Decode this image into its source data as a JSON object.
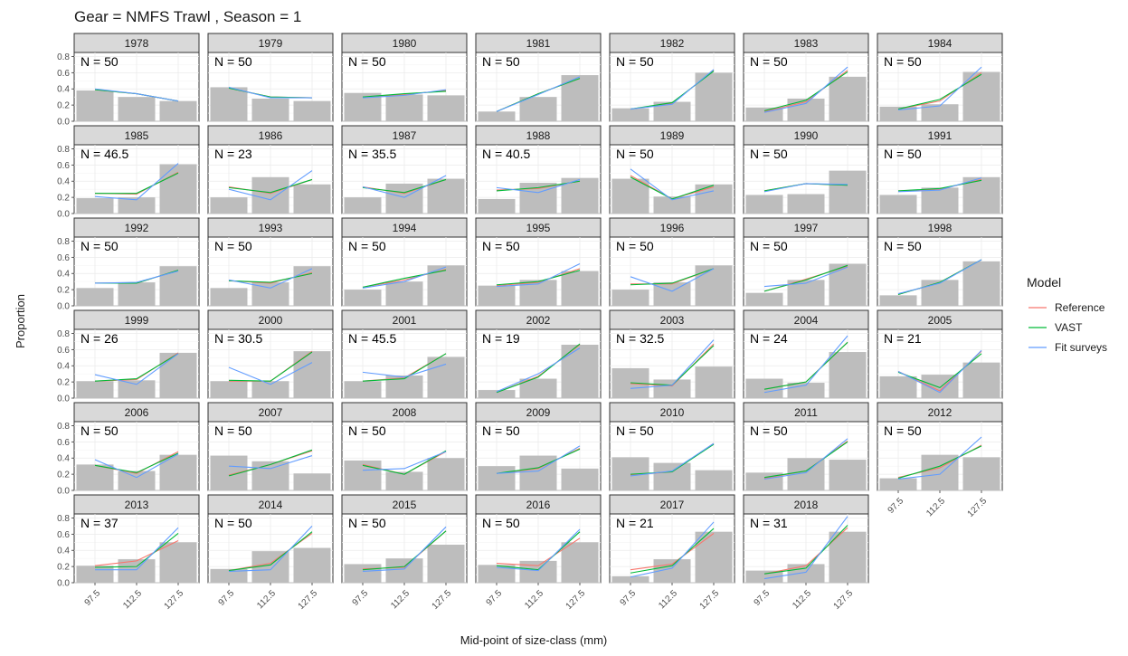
{
  "chart_data": {
    "type": "bar",
    "title": "Gear = NMFS Trawl , Season = 1",
    "xlabel": "Mid-point of size-class (mm)",
    "ylabel": "Proportion",
    "categories": [
      "97.5",
      "112.5",
      "127.5"
    ],
    "ylim": [
      0,
      0.85
    ],
    "yticks": [
      "0.0",
      "0.2",
      "0.4",
      "0.6",
      "0.8"
    ],
    "grid": true,
    "legend": {
      "title": "Model",
      "position": "right",
      "entries": [
        {
          "name": "Reference",
          "color": "#F8766D"
        },
        {
          "name": "VAST",
          "color": "#00BA38"
        },
        {
          "name": "Fit surveys",
          "color": "#619CFF"
        }
      ]
    },
    "bar_color": "#BDBDBD",
    "panels": [
      {
        "year": "1978",
        "n": "N = 50",
        "obs": [
          0.38,
          0.3,
          0.25
        ],
        "ref": [
          0.39,
          0.34,
          0.25
        ],
        "vast": [
          0.39,
          0.34,
          0.25
        ],
        "fit": [
          0.4,
          0.34,
          0.25
        ]
      },
      {
        "year": "1979",
        "n": "N = 50",
        "obs": [
          0.42,
          0.28,
          0.25
        ],
        "ref": [
          0.41,
          0.3,
          0.29
        ],
        "vast": [
          0.41,
          0.3,
          0.29
        ],
        "fit": [
          0.42,
          0.29,
          0.29
        ]
      },
      {
        "year": "1980",
        "n": "N = 50",
        "obs": [
          0.35,
          0.33,
          0.32
        ],
        "ref": [
          0.3,
          0.33,
          0.38
        ],
        "vast": [
          0.3,
          0.34,
          0.37
        ],
        "fit": [
          0.29,
          0.32,
          0.39
        ]
      },
      {
        "year": "1981",
        "n": "N = 50",
        "obs": [
          0.12,
          0.3,
          0.57
        ],
        "ref": [
          0.12,
          0.34,
          0.53
        ],
        "vast": [
          0.12,
          0.34,
          0.53
        ],
        "fit": [
          0.12,
          0.33,
          0.55
        ]
      },
      {
        "year": "1982",
        "n": "N = 50",
        "obs": [
          0.16,
          0.24,
          0.6
        ],
        "ref": [
          0.15,
          0.22,
          0.63
        ],
        "vast": [
          0.15,
          0.23,
          0.62
        ],
        "fit": [
          0.15,
          0.21,
          0.64
        ]
      },
      {
        "year": "1983",
        "n": "N = 50",
        "obs": [
          0.17,
          0.28,
          0.55
        ],
        "ref": [
          0.12,
          0.24,
          0.63
        ],
        "vast": [
          0.13,
          0.26,
          0.61
        ],
        "fit": [
          0.11,
          0.22,
          0.67
        ]
      },
      {
        "year": "1984",
        "n": "N = 50",
        "obs": [
          0.18,
          0.21,
          0.61
        ],
        "ref": [
          0.15,
          0.25,
          0.6
        ],
        "vast": [
          0.15,
          0.27,
          0.58
        ],
        "fit": [
          0.14,
          0.19,
          0.67
        ]
      },
      {
        "year": "1985",
        "n": "N = 46.5",
        "obs": [
          0.19,
          0.2,
          0.61
        ],
        "ref": [
          0.25,
          0.24,
          0.51
        ],
        "vast": [
          0.25,
          0.25,
          0.5
        ],
        "fit": [
          0.21,
          0.17,
          0.62
        ]
      },
      {
        "year": "1986",
        "n": "N = 23",
        "obs": [
          0.2,
          0.45,
          0.36
        ],
        "ref": [
          0.33,
          0.25,
          0.42
        ],
        "vast": [
          0.32,
          0.26,
          0.42
        ],
        "fit": [
          0.3,
          0.17,
          0.53
        ]
      },
      {
        "year": "1987",
        "n": "N = 35.5",
        "obs": [
          0.2,
          0.37,
          0.43
        ],
        "ref": [
          0.33,
          0.25,
          0.42
        ],
        "vast": [
          0.32,
          0.26,
          0.42
        ],
        "fit": [
          0.33,
          0.2,
          0.47
        ]
      },
      {
        "year": "1988",
        "n": "N = 40.5",
        "obs": [
          0.18,
          0.38,
          0.44
        ],
        "ref": [
          0.29,
          0.31,
          0.4
        ],
        "vast": [
          0.28,
          0.32,
          0.4
        ],
        "fit": [
          0.32,
          0.26,
          0.42
        ]
      },
      {
        "year": "1989",
        "n": "N = 50",
        "obs": [
          0.43,
          0.21,
          0.36
        ],
        "ref": [
          0.47,
          0.18,
          0.33
        ],
        "vast": [
          0.45,
          0.18,
          0.35
        ],
        "fit": [
          0.55,
          0.17,
          0.28
        ]
      },
      {
        "year": "1990",
        "n": "N = 50",
        "obs": [
          0.23,
          0.24,
          0.53
        ],
        "ref": [
          0.28,
          0.37,
          0.35
        ],
        "vast": [
          0.28,
          0.37,
          0.35
        ],
        "fit": [
          0.27,
          0.37,
          0.36
        ]
      },
      {
        "year": "1991",
        "n": "N = 50",
        "obs": [
          0.23,
          0.32,
          0.45
        ],
        "ref": [
          0.28,
          0.3,
          0.42
        ],
        "vast": [
          0.28,
          0.31,
          0.41
        ],
        "fit": [
          0.27,
          0.29,
          0.44
        ]
      },
      {
        "year": "1992",
        "n": "N = 50",
        "obs": [
          0.22,
          0.29,
          0.49
        ],
        "ref": [
          0.28,
          0.28,
          0.44
        ],
        "vast": [
          0.28,
          0.28,
          0.44
        ],
        "fit": [
          0.28,
          0.29,
          0.43
        ]
      },
      {
        "year": "1993",
        "n": "N = 50",
        "obs": [
          0.22,
          0.29,
          0.49
        ],
        "ref": [
          0.31,
          0.28,
          0.41
        ],
        "vast": [
          0.31,
          0.29,
          0.4
        ],
        "fit": [
          0.32,
          0.22,
          0.46
        ]
      },
      {
        "year": "1994",
        "n": "N = 50",
        "obs": [
          0.2,
          0.3,
          0.5
        ],
        "ref": [
          0.23,
          0.32,
          0.45
        ],
        "vast": [
          0.23,
          0.34,
          0.44
        ],
        "fit": [
          0.22,
          0.3,
          0.48
        ]
      },
      {
        "year": "1995",
        "n": "N = 50",
        "obs": [
          0.25,
          0.32,
          0.43
        ],
        "ref": [
          0.25,
          0.29,
          0.46
        ],
        "vast": [
          0.26,
          0.3,
          0.44
        ],
        "fit": [
          0.24,
          0.27,
          0.52
        ]
      },
      {
        "year": "1996",
        "n": "N = 50",
        "obs": [
          0.2,
          0.29,
          0.5
        ],
        "ref": [
          0.27,
          0.27,
          0.46
        ],
        "vast": [
          0.26,
          0.28,
          0.46
        ],
        "fit": [
          0.36,
          0.18,
          0.46
        ]
      },
      {
        "year": "1997",
        "n": "N = 50",
        "obs": [
          0.16,
          0.32,
          0.52
        ],
        "ref": [
          0.18,
          0.33,
          0.49
        ],
        "vast": [
          0.18,
          0.32,
          0.5
        ],
        "fit": [
          0.24,
          0.28,
          0.48
        ]
      },
      {
        "year": "1998",
        "n": "N = 50",
        "obs": [
          0.13,
          0.32,
          0.55
        ],
        "ref": [
          0.14,
          0.29,
          0.57
        ],
        "vast": [
          0.14,
          0.29,
          0.57
        ],
        "fit": [
          0.15,
          0.28,
          0.57
        ]
      },
      {
        "year": "1999",
        "n": "N = 26",
        "obs": [
          0.21,
          0.22,
          0.56
        ],
        "ref": [
          0.21,
          0.23,
          0.56
        ],
        "vast": [
          0.21,
          0.24,
          0.55
        ],
        "fit": [
          0.29,
          0.17,
          0.55
        ]
      },
      {
        "year": "2000",
        "n": "N = 30.5",
        "obs": [
          0.21,
          0.21,
          0.58
        ],
        "ref": [
          0.21,
          0.21,
          0.58
        ],
        "vast": [
          0.22,
          0.21,
          0.57
        ],
        "fit": [
          0.38,
          0.17,
          0.44
        ]
      },
      {
        "year": "2001",
        "n": "N = 45.5",
        "obs": [
          0.21,
          0.28,
          0.51
        ],
        "ref": [
          0.21,
          0.25,
          0.55
        ],
        "vast": [
          0.21,
          0.24,
          0.55
        ],
        "fit": [
          0.32,
          0.26,
          0.42
        ]
      },
      {
        "year": "2002",
        "n": "N = 19",
        "obs": [
          0.1,
          0.24,
          0.66
        ],
        "ref": [
          0.07,
          0.27,
          0.66
        ],
        "vast": [
          0.07,
          0.26,
          0.67
        ],
        "fit": [
          0.08,
          0.3,
          0.62
        ]
      },
      {
        "year": "2003",
        "n": "N = 32.5",
        "obs": [
          0.37,
          0.23,
          0.39
        ],
        "ref": [
          0.18,
          0.15,
          0.67
        ],
        "vast": [
          0.19,
          0.16,
          0.65
        ],
        "fit": [
          0.12,
          0.16,
          0.72
        ]
      },
      {
        "year": "2004",
        "n": "N = 24",
        "obs": [
          0.24,
          0.19,
          0.57
        ],
        "ref": [
          0.11,
          0.2,
          0.69
        ],
        "vast": [
          0.11,
          0.2,
          0.69
        ],
        "fit": [
          0.07,
          0.16,
          0.77
        ]
      },
      {
        "year": "2005",
        "n": "N = 21",
        "obs": [
          0.27,
          0.29,
          0.44
        ],
        "ref": [
          0.33,
          0.09,
          0.58
        ],
        "vast": [
          0.32,
          0.13,
          0.55
        ],
        "fit": [
          0.33,
          0.07,
          0.59
        ]
      },
      {
        "year": "2006",
        "n": "N = 50",
        "obs": [
          0.32,
          0.24,
          0.44
        ],
        "ref": [
          0.31,
          0.21,
          0.48
        ],
        "vast": [
          0.31,
          0.22,
          0.46
        ],
        "fit": [
          0.38,
          0.16,
          0.45
        ]
      },
      {
        "year": "2007",
        "n": "N = 50",
        "obs": [
          0.43,
          0.36,
          0.21
        ],
        "ref": [
          0.19,
          0.32,
          0.49
        ],
        "vast": [
          0.18,
          0.32,
          0.5
        ],
        "fit": [
          0.3,
          0.27,
          0.43
        ]
      },
      {
        "year": "2008",
        "n": "N = 50",
        "obs": [
          0.37,
          0.23,
          0.4
        ],
        "ref": [
          0.32,
          0.2,
          0.48
        ],
        "vast": [
          0.31,
          0.2,
          0.49
        ],
        "fit": [
          0.25,
          0.27,
          0.48
        ]
      },
      {
        "year": "2009",
        "n": "N = 50",
        "obs": [
          0.3,
          0.43,
          0.27
        ],
        "ref": [
          0.21,
          0.27,
          0.52
        ],
        "vast": [
          0.21,
          0.28,
          0.51
        ],
        "fit": [
          0.21,
          0.24,
          0.55
        ]
      },
      {
        "year": "2010",
        "n": "N = 50",
        "obs": [
          0.41,
          0.34,
          0.25
        ],
        "ref": [
          0.19,
          0.23,
          0.58
        ],
        "vast": [
          0.2,
          0.23,
          0.57
        ],
        "fit": [
          0.18,
          0.24,
          0.58
        ]
      },
      {
        "year": "2011",
        "n": "N = 50",
        "obs": [
          0.22,
          0.4,
          0.38
        ],
        "ref": [
          0.15,
          0.24,
          0.61
        ],
        "vast": [
          0.16,
          0.24,
          0.6
        ],
        "fit": [
          0.14,
          0.22,
          0.64
        ]
      },
      {
        "year": "2012",
        "n": "N = 50",
        "obs": [
          0.15,
          0.44,
          0.41
        ],
        "ref": [
          0.16,
          0.28,
          0.56
        ],
        "vast": [
          0.15,
          0.3,
          0.55
        ],
        "fit": [
          0.14,
          0.2,
          0.66
        ]
      },
      {
        "year": "2013",
        "n": "N = 37",
        "obs": [
          0.21,
          0.29,
          0.5
        ],
        "ref": [
          0.21,
          0.27,
          0.52
        ],
        "vast": [
          0.19,
          0.2,
          0.61
        ],
        "fit": [
          0.16,
          0.16,
          0.68
        ]
      },
      {
        "year": "2014",
        "n": "N = 50",
        "obs": [
          0.17,
          0.39,
          0.43
        ],
        "ref": [
          0.15,
          0.24,
          0.61
        ],
        "vast": [
          0.15,
          0.22,
          0.63
        ],
        "fit": [
          0.14,
          0.16,
          0.7
        ]
      },
      {
        "year": "2015",
        "n": "N = 50",
        "obs": [
          0.23,
          0.3,
          0.47
        ],
        "ref": [
          0.17,
          0.19,
          0.64
        ],
        "vast": [
          0.16,
          0.2,
          0.64
        ],
        "fit": [
          0.14,
          0.17,
          0.69
        ]
      },
      {
        "year": "2016",
        "n": "N = 50",
        "obs": [
          0.22,
          0.27,
          0.5
        ],
        "ref": [
          0.24,
          0.21,
          0.55
        ],
        "vast": [
          0.21,
          0.16,
          0.63
        ],
        "fit": [
          0.19,
          0.15,
          0.66
        ]
      },
      {
        "year": "2017",
        "n": "N = 21",
        "obs": [
          0.08,
          0.29,
          0.63
        ],
        "ref": [
          0.16,
          0.23,
          0.61
        ],
        "vast": [
          0.12,
          0.21,
          0.67
        ],
        "fit": [
          0.07,
          0.18,
          0.75
        ]
      },
      {
        "year": "2018",
        "n": "N = 31",
        "obs": [
          0.15,
          0.23,
          0.63
        ],
        "ref": [
          0.11,
          0.21,
          0.68
        ],
        "vast": [
          0.11,
          0.18,
          0.71
        ],
        "fit": [
          0.05,
          0.13,
          0.82
        ]
      }
    ]
  }
}
